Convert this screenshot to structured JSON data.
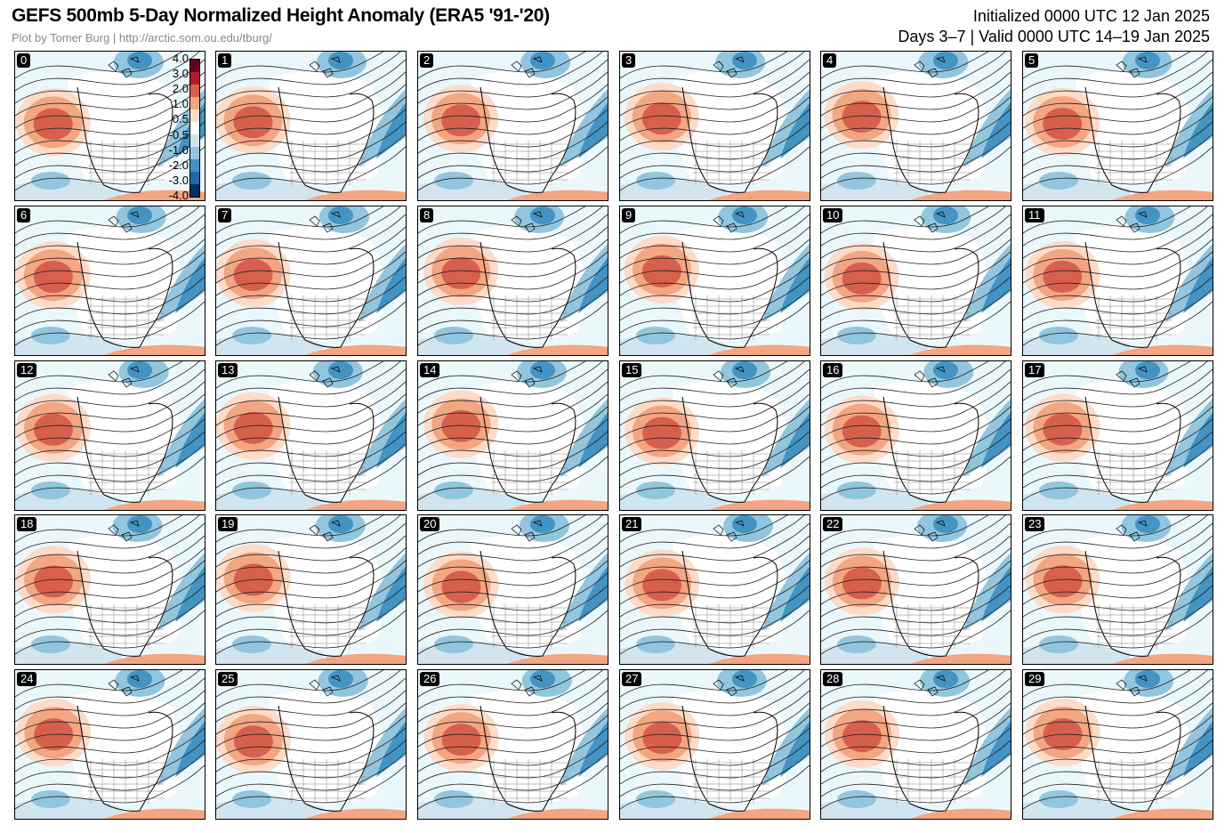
{
  "header": {
    "title": "GEFS 500mb 5-Day Normalized Height Anomaly (ERA5 '91-'20)",
    "credit": "Plot by Tomer Burg | http://arctic.som.ou.edu/tburg/",
    "initialized": "Initialized 0000 UTC 12 Jan 2025",
    "valid": "Days 3–7 | Valid 0000 UTC 14–19 Jan 2025"
  },
  "colorbar": {
    "ticks": [
      "4.0",
      "3.0",
      "2.0",
      "1.0",
      "0.5",
      "-0.5",
      "-1.0",
      "-2.0",
      "-3.0",
      "-4.0"
    ],
    "colors": [
      "#67001f",
      "#b2182b",
      "#d6604d",
      "#f4a582",
      "#fddbc7",
      "#ffffff",
      "#d1e5f0",
      "#92c5de",
      "#4393c3",
      "#2166ac",
      "#053061"
    ]
  },
  "panels": [
    "0",
    "1",
    "2",
    "3",
    "4",
    "5",
    "6",
    "7",
    "8",
    "9",
    "10",
    "11",
    "12",
    "13",
    "14",
    "15",
    "16",
    "17",
    "18",
    "19",
    "20",
    "21",
    "22",
    "23",
    "24",
    "25",
    "26",
    "27",
    "28",
    "29"
  ]
}
